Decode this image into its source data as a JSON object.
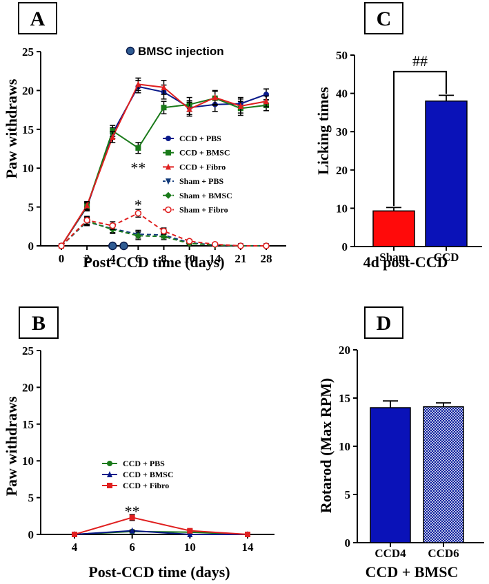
{
  "colors": {
    "navy": "#0a1a8a",
    "green": "#1a7a1a",
    "red": "#e02020",
    "sham_dark": "#123a7a",
    "bar_blue": "#0a12b8",
    "bar_red": "#ff0a0a",
    "check_a": "#0b1aa0",
    "check_b": "#b8c4e0"
  },
  "chart_data": [
    {
      "panel": "A",
      "type": "line",
      "xlabel": "Post-CCD time (days)",
      "ylabel": "Paw withdraws",
      "categories": [
        "0",
        "2",
        "4",
        "6",
        "8",
        "10",
        "14",
        "21",
        "28"
      ],
      "ylim": [
        0,
        25
      ],
      "yticks": [
        "0",
        "5",
        "10",
        "15",
        "20",
        "25"
      ],
      "injection_label": "BMSC injection",
      "injection_days": [
        "4",
        "5"
      ],
      "annotations": [
        {
          "text": "**",
          "category": "6",
          "y": 10.1
        },
        {
          "text": "*",
          "category": "6",
          "y": 5.3
        }
      ],
      "series": [
        {
          "name": "CCD + PBS",
          "color": "#0a1a8a",
          "marker": "circle",
          "dash": "",
          "values": [
            0,
            5.0,
            14.5,
            20.5,
            19.8,
            17.8,
            18.2,
            18.3,
            19.5
          ],
          "err": [
            0,
            0.5,
            0.7,
            0.8,
            0.9,
            0.9,
            0.9,
            0.8,
            0.7
          ]
        },
        {
          "name": "CCD + BMSC",
          "color": "#1a7a1a",
          "marker": "square",
          "dash": "",
          "values": [
            0,
            5.1,
            14.8,
            12.6,
            17.8,
            18.2,
            19.0,
            17.7,
            18.1
          ],
          "err": [
            0,
            0.5,
            0.7,
            0.7,
            0.8,
            0.9,
            0.9,
            0.9,
            0.7
          ]
        },
        {
          "name": "CCD + Fibro",
          "color": "#e02020",
          "marker": "triangle",
          "dash": "",
          "values": [
            0,
            5.2,
            14.0,
            20.8,
            20.4,
            17.6,
            19.1,
            18.0,
            18.6
          ],
          "err": [
            0,
            0.5,
            0.7,
            0.8,
            0.9,
            0.9,
            0.9,
            0.9,
            0.7
          ]
        },
        {
          "name": "Sham + PBS",
          "color": "#123a7a",
          "marker": "triangle-down",
          "dash": "6,4",
          "values": [
            0,
            3.1,
            2.2,
            1.5,
            1.4,
            0.4,
            0.1,
            0,
            0
          ],
          "err": [
            0,
            0.5,
            0.5,
            0.5,
            0.4,
            0.2,
            0.1,
            0,
            0
          ]
        },
        {
          "name": "Sham + BMSC",
          "color": "#1a7a1a",
          "marker": "diamond",
          "dash": "6,4",
          "values": [
            0,
            3.2,
            2.1,
            1.3,
            1.2,
            0.3,
            0.1,
            0,
            0
          ],
          "err": [
            0,
            0.5,
            0.5,
            0.5,
            0.4,
            0.2,
            0.1,
            0,
            0
          ]
        },
        {
          "name": "Sham + Fibro",
          "color": "#e02020",
          "marker": "circle-open",
          "dash": "6,4",
          "values": [
            0,
            3.3,
            2.6,
            4.2,
            1.9,
            0.6,
            0.2,
            0,
            0
          ],
          "err": [
            0,
            0.5,
            0.5,
            0.5,
            0.4,
            0.2,
            0.1,
            0,
            0
          ]
        }
      ]
    },
    {
      "panel": "B",
      "type": "line",
      "xlabel": "Post-CCD time (days)",
      "ylabel": "Paw withdraws",
      "categories": [
        "4",
        "6",
        "10",
        "14"
      ],
      "ylim": [
        0,
        25
      ],
      "yticks": [
        "0",
        "5",
        "10",
        "15",
        "20",
        "25"
      ],
      "annotations": [
        {
          "text": "**",
          "category": "6",
          "y": 3.2
        }
      ],
      "series": [
        {
          "name": "CCD + PBS",
          "color": "#1a7a1a",
          "marker": "circle",
          "values": [
            0,
            0.4,
            0.3,
            0
          ],
          "err": [
            0,
            0.1,
            0.1,
            0
          ]
        },
        {
          "name": "CCD + BMSC",
          "color": "#0a1a8a",
          "marker": "triangle",
          "values": [
            0,
            0.5,
            0,
            0
          ],
          "err": [
            0,
            0.1,
            0,
            0
          ]
        },
        {
          "name": "CCD + Fibro",
          "color": "#e02020",
          "marker": "square",
          "values": [
            0,
            2.3,
            0.5,
            0
          ],
          "err": [
            0,
            0.4,
            0.2,
            0
          ]
        }
      ]
    },
    {
      "panel": "C",
      "type": "bar",
      "xlabel": "4d post-CCD",
      "ylabel": "Licking times",
      "categories": [
        "Sham",
        "CCD"
      ],
      "values": [
        9.3,
        38.0
      ],
      "err": [
        0.9,
        1.5
      ],
      "bar_colors": [
        "#ff0a0a",
        "#0a12b8"
      ],
      "ylim": [
        0,
        50
      ],
      "yticks": [
        "0",
        "10",
        "20",
        "30",
        "40",
        "50"
      ],
      "significance": "##"
    },
    {
      "panel": "D",
      "type": "bar",
      "xlabel": "CCD + BMSC",
      "ylabel": "Rotarod (Max RPM)",
      "categories": [
        "CCD4",
        "CCD6"
      ],
      "values": [
        14.0,
        14.1
      ],
      "err": [
        0.7,
        0.4
      ],
      "ylim": [
        0,
        20
      ],
      "yticks": [
        "0",
        "5",
        "10",
        "15",
        "20"
      ]
    }
  ]
}
